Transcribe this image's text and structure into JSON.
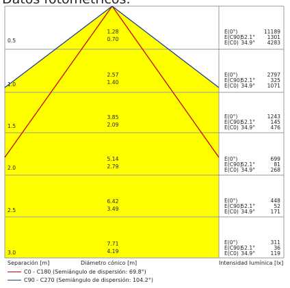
{
  "title": "Datos fotométricos:",
  "colors": {
    "cone_fill": "#ffff00",
    "c0_c180_line": "#cc0000",
    "c90_c270_line": "#1f3b99",
    "grid": "#9a9a9a"
  },
  "rows": [
    {
      "separation": "0.5",
      "diameter_c0": "1.28",
      "diameter_c90": "0.70",
      "e0_label": "E(0°)",
      "ec90_label": "E(C90)",
      "ec0_label": "E(C0)",
      "angle_c90": "52.1°",
      "angle_c0": "34.9°",
      "e0_value": "11189",
      "ec90_value": "1301",
      "ec0_value": "4283"
    },
    {
      "separation": "1.0",
      "diameter_c0": "2.57",
      "diameter_c90": "1.40",
      "e0_label": "E(0°)",
      "ec90_label": "E(C90)",
      "ec0_label": "E(C0)",
      "angle_c90": "52.1°",
      "angle_c0": "34.9°",
      "e0_value": "2797",
      "ec90_value": "325",
      "ec0_value": "1071"
    },
    {
      "separation": "1.5",
      "diameter_c0": "3.85",
      "diameter_c90": "2.09",
      "e0_label": "E(0°)",
      "ec90_label": "E(C90)",
      "ec0_label": "E(C0)",
      "angle_c90": "52.1°",
      "angle_c0": "34.9°",
      "e0_value": "1243",
      "ec90_value": "145",
      "ec0_value": "476"
    },
    {
      "separation": "2.0",
      "diameter_c0": "5.14",
      "diameter_c90": "2.79",
      "e0_label": "E(0°)",
      "ec90_label": "E(C90)",
      "ec0_label": "E(C0)",
      "angle_c90": "52.1°",
      "angle_c0": "34.9°",
      "e0_value": "699",
      "ec90_value": "81",
      "ec0_value": "268"
    },
    {
      "separation": "2.5",
      "diameter_c0": "6.42",
      "diameter_c90": "3.49",
      "e0_label": "E(0°)",
      "ec90_label": "E(C90)",
      "ec0_label": "E(C0)",
      "angle_c90": "52.1°",
      "angle_c0": "34.9°",
      "e0_value": "448",
      "ec90_value": "52",
      "ec0_value": "171"
    },
    {
      "separation": "3.0",
      "diameter_c0": "7.71",
      "diameter_c90": "4.19",
      "e0_label": "E(0°)",
      "ec90_label": "E(C90)",
      "ec0_label": "E(C0)",
      "angle_c90": "52.1°",
      "angle_c0": "34.9°",
      "e0_value": "311",
      "ec90_value": "36",
      "ec0_value": "119"
    }
  ],
  "footer": {
    "separation_label": "Separación [m]",
    "diameter_label": "Diámetro cónico [m]",
    "intensity_label": "Intensidad lumínica [lx]"
  },
  "legend": [
    {
      "text": "C0 - C180 (Semiángulo de dispersión: 69.8°)",
      "color": "#cc0000"
    },
    {
      "text": "C90 - C270 (Semiángulo de dispersión: 104.2°)",
      "color": "#1f3b99"
    }
  ]
}
